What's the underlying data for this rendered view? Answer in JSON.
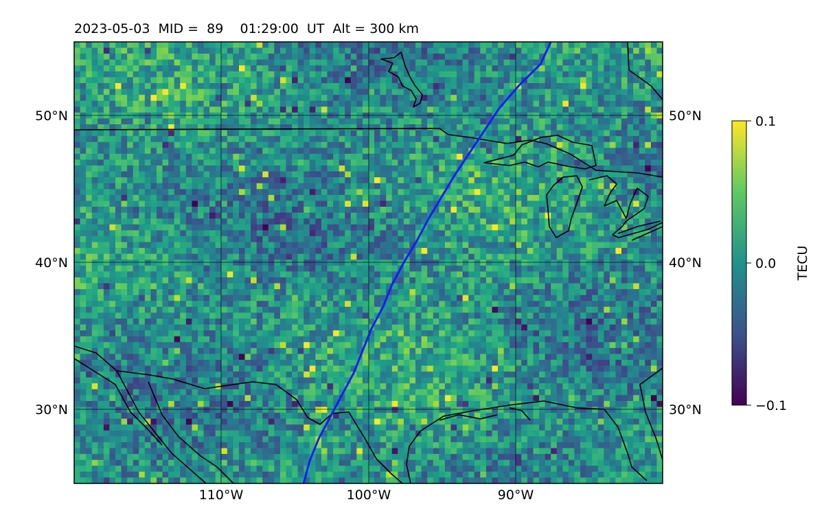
{
  "title": "2023-05-03  MID =  89    01:29:00  UT  Alt = 300 km",
  "map": {
    "lon_range": [
      -120,
      -80
    ],
    "lat_range": [
      25,
      55
    ],
    "lon_ticks": [
      "110°W",
      "100°W",
      "90°W"
    ],
    "lon_tick_values": [
      -110,
      -100,
      -90
    ],
    "lat_ticks": [
      "50°N",
      "40°N",
      "30°N"
    ],
    "lat_tick_values": [
      50,
      40,
      30
    ],
    "gridlines": true,
    "track_color": "#1a1aff"
  },
  "colorbar": {
    "label": "TECU",
    "tick_labels": [
      "0.1",
      "0.0",
      "−0.1"
    ],
    "min": -0.1,
    "max": 0.1,
    "colormap": "viridis"
  },
  "chart_data": {
    "type": "heatmap",
    "title": "2023-05-03  MID =  89    01:29:00  UT  Alt = 300 km",
    "quantity": "TECU",
    "value_range": [
      -0.1,
      0.1
    ],
    "x_range_deg_lon": [
      -120,
      -80
    ],
    "y_range_deg_lat": [
      25,
      55
    ],
    "track": {
      "lon": [
        -104.4,
        -104.0,
        -103.4,
        -102.6,
        -101.8,
        -101.0,
        -100.4,
        -99.8,
        -99.0,
        -98.4,
        -97.6,
        -96.7,
        -95.9,
        -95.0,
        -94.1,
        -93.1,
        -92.1,
        -91.1,
        -89.8,
        -88.3,
        -87.6
      ],
      "lat": [
        25.0,
        26.5,
        28.0,
        29.5,
        31.0,
        32.5,
        34.0,
        35.5,
        37.0,
        38.5,
        40.0,
        41.5,
        43.0,
        44.5,
        46.0,
        47.5,
        49.0,
        50.5,
        52.0,
        53.5,
        55.0
      ]
    }
  }
}
